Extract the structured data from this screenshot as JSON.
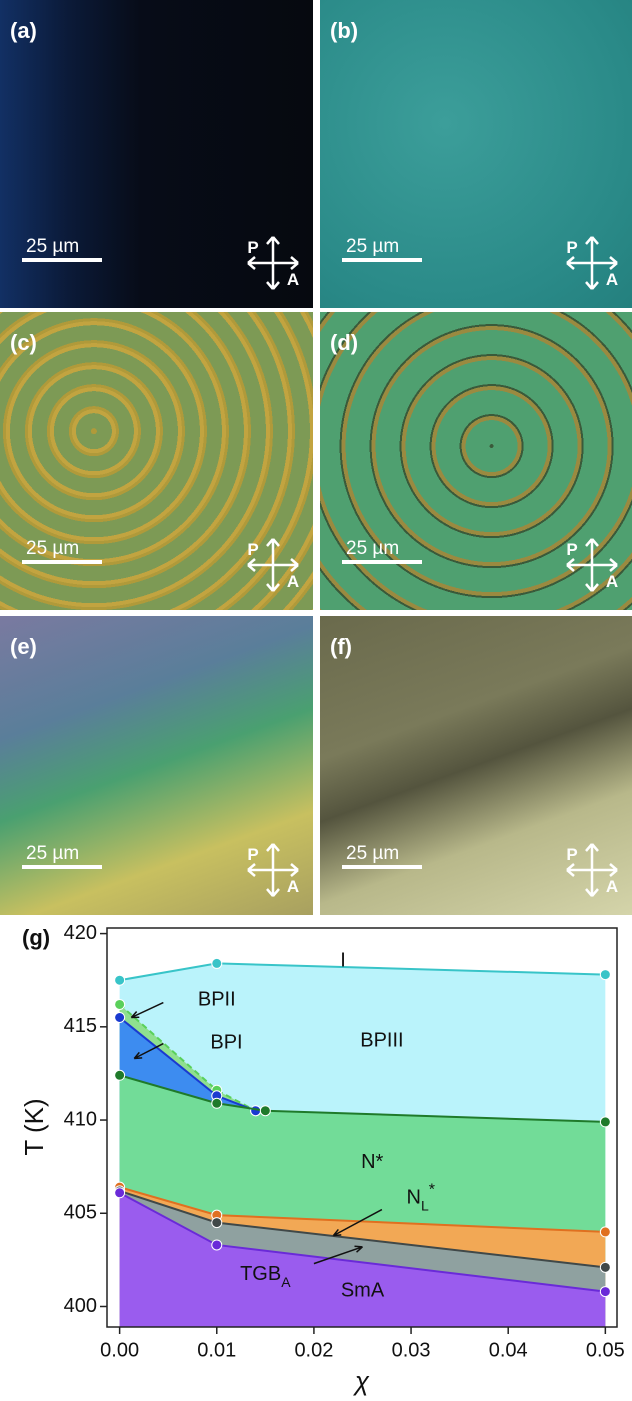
{
  "panels": [
    {
      "label": "(a)",
      "scale": "25 µm",
      "polarizer": "P",
      "analyzer": "A"
    },
    {
      "label": "(b)",
      "scale": "25 µm",
      "polarizer": "P",
      "analyzer": "A"
    },
    {
      "label": "(c)",
      "scale": "25 µm",
      "polarizer": "P",
      "analyzer": "A"
    },
    {
      "label": "(d)",
      "scale": "25 µm",
      "polarizer": "P",
      "analyzer": "A"
    },
    {
      "label": "(e)",
      "scale": "25 µm",
      "polarizer": "P",
      "analyzer": "A"
    },
    {
      "label": "(f)",
      "scale": "25 µm",
      "polarizer": "P",
      "analyzer": "A"
    }
  ],
  "chart_data": {
    "type": "line",
    "label": "(g)",
    "x_label": "χ",
    "y_label": "T (K)",
    "xlim": [
      -0.0013,
      0.0512
    ],
    "ylim": [
      398.9,
      420.3
    ],
    "xticks": [
      {
        "value": 0,
        "label": "0.00"
      },
      0.01,
      0.02,
      0.03,
      0.04,
      0.05
    ],
    "yticks": [
      400,
      405,
      410,
      415,
      420
    ],
    "series": [
      {
        "color": "#38c4c8",
        "fill": "#baf3fb",
        "x": [
          0,
          0.01,
          0.05
        ],
        "values": [
          417.5,
          418.4,
          417.8
        ]
      },
      {
        "color": "#5ad05a",
        "fill": "#8fe08f",
        "x": [
          0,
          0.01,
          0.014
        ],
        "values": [
          416.2,
          411.6,
          410.5
        ]
      },
      {
        "color": "#1a3ad0",
        "fill": "#3d8cf0",
        "x": [
          0,
          0.01,
          0.014
        ],
        "values": [
          415.5,
          411.3,
          410.5
        ]
      },
      {
        "color": "#1f7a2a",
        "fill": "#72dc98",
        "x": [
          0,
          0.01,
          0.015,
          0.05
        ],
        "values": [
          412.4,
          410.9,
          410.5,
          409.9
        ]
      },
      {
        "color": "#e07020",
        "fill": "#f2a855",
        "x": [
          0,
          0.01,
          0.05
        ],
        "values": [
          406.4,
          404.9,
          404.0
        ]
      },
      {
        "color": "#404848",
        "fill": "#8fa1a0",
        "x": [
          0,
          0.01,
          0.05
        ],
        "values": [
          406.2,
          404.5,
          402.1
        ]
      },
      {
        "color": "#6a2ad8",
        "fill": "#9a5cee",
        "x": [
          0,
          0.01,
          0.05
        ],
        "values": [
          406.1,
          403.3,
          400.8
        ]
      }
    ],
    "annotations": [
      {
        "main": "I"
      },
      {
        "main": "BPII"
      },
      {
        "main": "BPI"
      },
      {
        "main": "BPIII"
      },
      {
        "main": "N*"
      },
      {
        "main": "N",
        "sub": "L",
        "sup": "*"
      },
      {
        "main": "TGB",
        "sub": "A"
      },
      {
        "main": "SmA"
      }
    ]
  }
}
